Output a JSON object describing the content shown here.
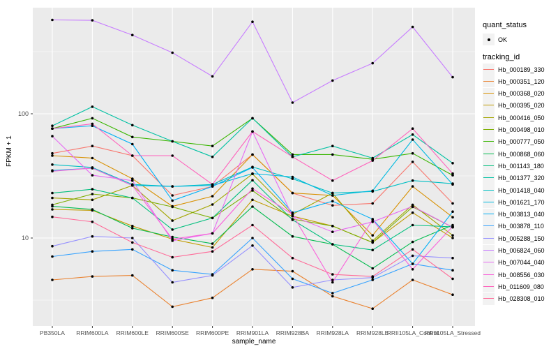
{
  "figure": {
    "y_axis_title": "FPKM + 1",
    "x_axis_title": "sample_name",
    "legend": {
      "quant_status_title": "quant_status",
      "quant_status_ok_label": "OK",
      "quant_status_symbol": "black-point",
      "tracking_id_title": "tracking_id"
    },
    "colors": {
      "panel_background": "#EBEBEB",
      "gridline": "#FFFFFF",
      "tick_text": "#4D4D4D",
      "axis_title_text": "#000000",
      "data_point": "#000000",
      "legend_key_background": "#F2F2F2"
    }
  },
  "chart_data": {
    "type": "line",
    "title": "",
    "xlabel": "sample_name",
    "ylabel": "FPKM + 1",
    "y_scale": "log10",
    "ylim": [
      2,
      700
    ],
    "y_ticks": [
      10,
      100
    ],
    "y_tick_labels": [
      "10",
      "100"
    ],
    "y_minor_ticks": [
      3.162,
      31.62,
      316.2
    ],
    "grid": true,
    "legend_position": "right",
    "point_shape": "filled-black-circle",
    "quant_status_legend": {
      "title": "quant_status",
      "items": [
        "OK"
      ]
    },
    "series_legend_title": "tracking_id",
    "x": [
      "PB350LA",
      "RRIM600LA",
      "RRIM600LE",
      "RRIM600SE",
      "RRIM600PE",
      "RRIM901LA",
      "RRIM928BA",
      "RRIM928LA",
      "RRIM928LE",
      "RRII105LA_Control",
      "RRII105LA_Stressed"
    ],
    "series": [
      {
        "name": "Hb_000189_330",
        "color": "#F8766D",
        "values": [
          48,
          55,
          46,
          22,
          26,
          47,
          23,
          18.3,
          19,
          41,
          19
        ]
      },
      {
        "name": "Hb_000351_120",
        "color": "#EA8331",
        "values": [
          4.6,
          4.9,
          5.0,
          2.8,
          3.3,
          5.6,
          5.4,
          3.4,
          2.7,
          4.6,
          3.5
        ]
      },
      {
        "name": "Hb_000368_020",
        "color": "#D89000",
        "values": [
          46,
          44,
          30,
          18,
          21.7,
          47,
          23,
          22,
          10.5,
          26,
          14.7
        ]
      },
      {
        "name": "Hb_000395_020",
        "color": "#C09B00",
        "values": [
          17,
          16.7,
          12.5,
          9.8,
          8.4,
          20.3,
          15,
          12.5,
          9.2,
          16,
          10
        ]
      },
      {
        "name": "Hb_000416_050",
        "color": "#A3A500",
        "values": [
          21,
          20.3,
          26.5,
          13.8,
          18.6,
          32.8,
          15.5,
          23,
          9.5,
          18.5,
          10.5
        ]
      },
      {
        "name": "Hb_000498_010",
        "color": "#7CAE00",
        "values": [
          18.5,
          22.6,
          21,
          17.8,
          14.5,
          24.1,
          14.2,
          12.5,
          9.2,
          17.8,
          12.2
        ]
      },
      {
        "name": "Hb_000777_050",
        "color": "#39B600",
        "values": [
          76,
          92,
          65,
          60,
          55,
          92,
          47,
          47,
          43,
          48,
          32
        ]
      },
      {
        "name": "Hb_000868_060",
        "color": "#00BB4E",
        "values": [
          18,
          17,
          12,
          10.2,
          9,
          17.9,
          10.3,
          8.9,
          5.7,
          9.3,
          12.7
        ]
      },
      {
        "name": "Hb_001143_180",
        "color": "#00BF7D",
        "values": [
          23,
          24.7,
          21,
          11.7,
          14.5,
          29.2,
          14,
          8.9,
          8,
          12.7,
          12.3
        ]
      },
      {
        "name": "Hb_001377_320",
        "color": "#00C1A3",
        "values": [
          80,
          114,
          81,
          60,
          45,
          92,
          45,
          55,
          44,
          68,
          40
        ]
      },
      {
        "name": "Hb_001418_040",
        "color": "#00BFC4",
        "values": [
          39,
          37,
          27,
          26,
          27,
          37.3,
          30,
          23,
          23.7,
          29,
          27.4
        ]
      },
      {
        "name": "Hb_001621_170",
        "color": "#00BAE0",
        "values": [
          35,
          36.5,
          26.5,
          26,
          26.5,
          33,
          31,
          22,
          24,
          62,
          27
        ]
      },
      {
        "name": "Hb_003813_040",
        "color": "#00B0F6",
        "values": [
          76,
          80,
          57,
          20,
          26,
          37,
          16,
          19.8,
          14.2,
          6.2,
          16.3
        ]
      },
      {
        "name": "Hb_003878_110",
        "color": "#35A2FF",
        "values": [
          7.1,
          7.8,
          8.1,
          5.5,
          5.1,
          10,
          4.7,
          3.6,
          4.6,
          6.2,
          5.5
        ]
      },
      {
        "name": "Hb_005288_150",
        "color": "#9590FF",
        "values": [
          8.6,
          10.3,
          10,
          4.4,
          5.0,
          8.7,
          4.0,
          4.6,
          4.8,
          7.2,
          6.9
        ]
      },
      {
        "name": "Hb_006824_060",
        "color": "#C77CFF",
        "values": [
          570,
          565,
          430,
          310,
          200,
          550,
          123,
          185,
          255,
          500,
          197
        ]
      },
      {
        "name": "Hb_007044_040",
        "color": "#E76BF3",
        "values": [
          66,
          32,
          29,
          9.5,
          10.9,
          72,
          15,
          11.2,
          13.5,
          18,
          12.2
        ]
      },
      {
        "name": "Hb_008556_030",
        "color": "#FA62DB",
        "values": [
          34.5,
          36.5,
          26.5,
          9.8,
          10.9,
          25,
          15.5,
          4.4,
          14,
          5.6,
          12.4
        ]
      },
      {
        "name": "Hb_011609_080",
        "color": "#FF62BC",
        "values": [
          76,
          83,
          46,
          46,
          27,
          72,
          45,
          29,
          42,
          76,
          33
        ]
      },
      {
        "name": "Hb_028308_010",
        "color": "#FF6A98",
        "values": [
          14.8,
          13.5,
          9.2,
          7.0,
          7.8,
          12.7,
          6.9,
          5.1,
          4.9,
          8.1,
          4.7
        ]
      }
    ]
  }
}
